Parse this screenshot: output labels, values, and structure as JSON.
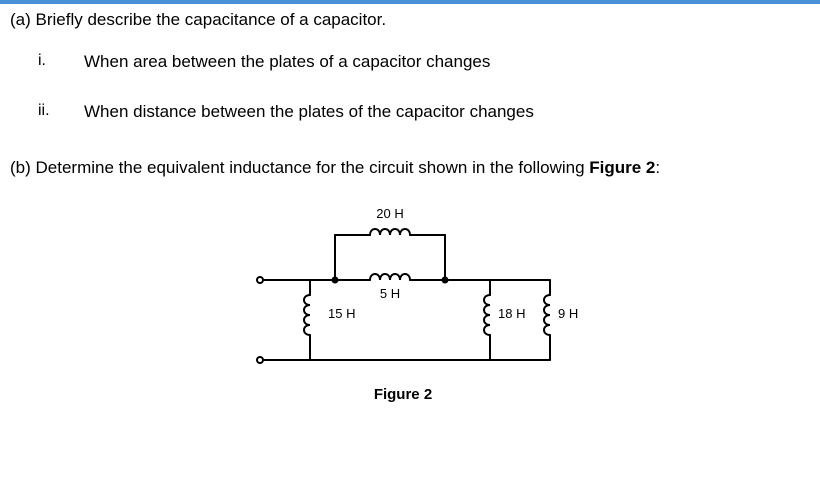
{
  "topbar_color": "#4a90d9",
  "partA": {
    "prompt": "(a) Briefly describe the capacitance of a capacitor.",
    "items": [
      {
        "num": "i.",
        "text": "When area between the plates of a capacitor changes"
      },
      {
        "num": "ii.",
        "text": "When distance between the plates of the capacitor changes"
      }
    ]
  },
  "partB": {
    "prefix": "(b) Determine the equivalent inductance for the circuit shown in the following ",
    "bold": "Figure 2",
    "suffix": ":"
  },
  "figure": {
    "caption": "Figure 2",
    "stroke": "#000000",
    "stroke_width": 2,
    "label_fontsize": 13,
    "label_color": "#000000",
    "terminal_radius": 3,
    "node_radius": 3.5,
    "labels": {
      "L_top": "20 H",
      "L_mid": "5 H",
      "L_left": "15 H",
      "L_right1": "18 H",
      "L_right2": "9 H"
    }
  }
}
